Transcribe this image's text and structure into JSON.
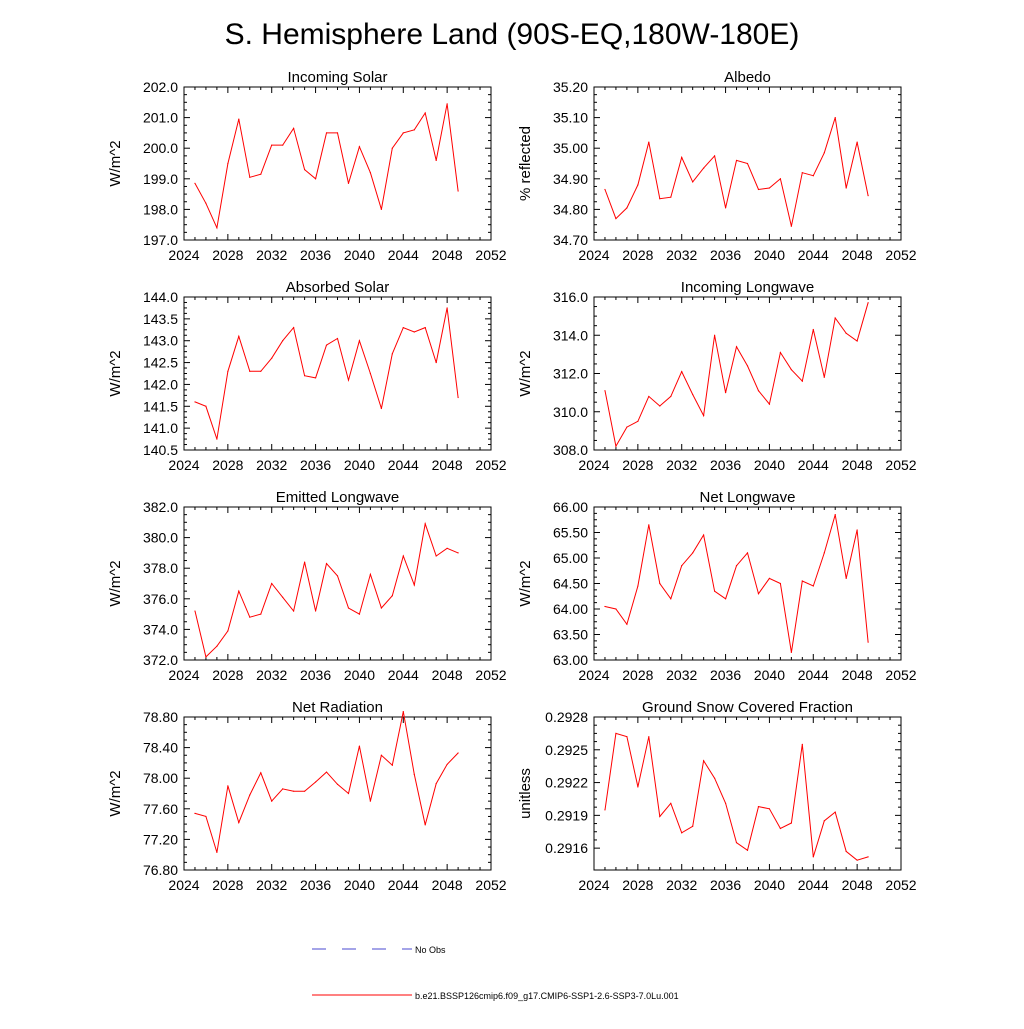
{
  "title": "S. Hemisphere Land (90S-EQ,180W-180E)",
  "colors": {
    "series": "#ff0000",
    "obs": "#4a4ad0",
    "frame": "#000000"
  },
  "legend": {
    "obs_label": "No Obs",
    "model_label": "b.e21.BSSP126cmip6.f09_g17.CMIP6-SSP1-2.6-SSP3-7.0Lu.001"
  },
  "chart_data": [
    {
      "type": "line",
      "title": "Incoming Solar",
      "ylabel": "W/m^2",
      "xlim": [
        2024,
        2052
      ],
      "xticks": [
        2024,
        2028,
        2032,
        2036,
        2040,
        2044,
        2048,
        2052
      ],
      "ylim": [
        197.0,
        202.0
      ],
      "yticks": [
        "197.0",
        "198.0",
        "199.0",
        "200.0",
        "201.0",
        "202.0"
      ],
      "x": [
        2025,
        2026,
        2027,
        2028,
        2029,
        2030,
        2031,
        2032,
        2033,
        2034,
        2035,
        2036,
        2037,
        2038,
        2039,
        2040,
        2041,
        2042,
        2043,
        2044,
        2045,
        2046,
        2047,
        2048,
        2049
      ],
      "values": [
        198.85,
        198.2,
        197.4,
        199.5,
        200.95,
        199.05,
        199.15,
        200.1,
        200.1,
        200.65,
        199.3,
        199.0,
        200.5,
        200.5,
        198.85,
        200.05,
        199.2,
        198.0,
        200.0,
        200.5,
        200.6,
        201.15,
        199.6,
        201.45,
        198.6
      ]
    },
    {
      "type": "line",
      "title": "Albedo",
      "ylabel": "% reflected",
      "xlim": [
        2024,
        2052
      ],
      "xticks": [
        2024,
        2028,
        2032,
        2036,
        2040,
        2044,
        2048,
        2052
      ],
      "ylim": [
        34.7,
        35.2
      ],
      "yticks": [
        "34.70",
        "34.80",
        "34.90",
        "35.00",
        "35.10",
        "35.20"
      ],
      "x": [
        2025,
        2026,
        2027,
        2028,
        2029,
        2030,
        2031,
        2032,
        2033,
        2034,
        2035,
        2036,
        2037,
        2038,
        2039,
        2040,
        2041,
        2042,
        2043,
        2044,
        2045,
        2046,
        2047,
        2048,
        2049
      ],
      "values": [
        34.865,
        34.77,
        34.805,
        34.88,
        35.02,
        34.835,
        34.84,
        34.97,
        34.89,
        34.935,
        34.975,
        34.805,
        34.96,
        34.95,
        34.865,
        34.87,
        34.9,
        34.745,
        34.92,
        34.91,
        34.985,
        35.1,
        34.87,
        35.02,
        34.845
      ]
    },
    {
      "type": "line",
      "title": "Absorbed Solar",
      "ylabel": "W/m^2",
      "xlim": [
        2024,
        2052
      ],
      "xticks": [
        2024,
        2028,
        2032,
        2036,
        2040,
        2044,
        2048,
        2052
      ],
      "ylim": [
        140.5,
        144.0
      ],
      "yticks": [
        "140.5",
        "141.0",
        "141.5",
        "142.0",
        "142.5",
        "143.0",
        "143.5",
        "144.0"
      ],
      "x": [
        2025,
        2026,
        2027,
        2028,
        2029,
        2030,
        2031,
        2032,
        2033,
        2034,
        2035,
        2036,
        2037,
        2038,
        2039,
        2040,
        2041,
        2042,
        2043,
        2044,
        2045,
        2046,
        2047,
        2048,
        2049
      ],
      "values": [
        141.6,
        141.5,
        140.75,
        142.3,
        143.1,
        142.3,
        142.3,
        142.6,
        143.0,
        143.3,
        142.2,
        142.15,
        142.9,
        143.05,
        142.1,
        143.0,
        142.25,
        141.45,
        142.7,
        143.3,
        143.2,
        143.3,
        142.5,
        143.75,
        141.7
      ]
    },
    {
      "type": "line",
      "title": "Incoming Longwave",
      "ylabel": "W/m^2",
      "xlim": [
        2024,
        2052
      ],
      "xticks": [
        2024,
        2028,
        2032,
        2036,
        2040,
        2044,
        2048,
        2052
      ],
      "ylim": [
        308.0,
        316.0
      ],
      "yticks": [
        "308.0",
        "310.0",
        "312.0",
        "314.0",
        "316.0"
      ],
      "x": [
        2025,
        2026,
        2027,
        2028,
        2029,
        2030,
        2031,
        2032,
        2033,
        2034,
        2035,
        2036,
        2037,
        2038,
        2039,
        2040,
        2041,
        2042,
        2043,
        2044,
        2045,
        2046,
        2047,
        2048,
        2049
      ],
      "values": [
        311.1,
        308.2,
        309.2,
        309.5,
        310.8,
        310.3,
        310.8,
        312.1,
        310.9,
        309.8,
        314.0,
        311.0,
        313.4,
        312.4,
        311.1,
        310.4,
        313.1,
        312.2,
        311.6,
        314.3,
        311.8,
        314.9,
        314.1,
        313.7,
        315.7
      ]
    },
    {
      "type": "line",
      "title": "Emitted Longwave",
      "ylabel": "W/m^2",
      "xlim": [
        2024,
        2052
      ],
      "xticks": [
        2024,
        2028,
        2032,
        2036,
        2040,
        2044,
        2048,
        2052
      ],
      "ylim": [
        372.0,
        382.0
      ],
      "yticks": [
        "372.0",
        "374.0",
        "376.0",
        "378.0",
        "380.0",
        "382.0"
      ],
      "x": [
        2025,
        2026,
        2027,
        2028,
        2029,
        2030,
        2031,
        2032,
        2033,
        2034,
        2035,
        2036,
        2037,
        2038,
        2039,
        2040,
        2041,
        2042,
        2043,
        2044,
        2045,
        2046,
        2047,
        2048,
        2049
      ],
      "values": [
        375.2,
        372.2,
        372.9,
        373.9,
        376.5,
        374.8,
        375.0,
        377.0,
        376.1,
        375.2,
        378.4,
        375.2,
        378.3,
        377.5,
        375.4,
        375.0,
        377.6,
        375.4,
        376.2,
        378.8,
        376.9,
        380.9,
        378.8,
        379.3,
        379.0
      ]
    },
    {
      "type": "line",
      "title": "Net Longwave",
      "ylabel": "W/m^2",
      "xlim": [
        2024,
        2052
      ],
      "xticks": [
        2024,
        2028,
        2032,
        2036,
        2040,
        2044,
        2048,
        2052
      ],
      "ylim": [
        63.0,
        66.0
      ],
      "yticks": [
        "63.00",
        "63.50",
        "64.00",
        "64.50",
        "65.00",
        "65.50",
        "66.00"
      ],
      "x": [
        2025,
        2026,
        2027,
        2028,
        2029,
        2030,
        2031,
        2032,
        2033,
        2034,
        2035,
        2036,
        2037,
        2038,
        2039,
        2040,
        2041,
        2042,
        2043,
        2044,
        2045,
        2046,
        2047,
        2048,
        2049
      ],
      "values": [
        64.05,
        64.0,
        63.7,
        64.45,
        65.65,
        64.5,
        64.2,
        64.85,
        65.1,
        65.45,
        64.35,
        64.2,
        64.85,
        65.1,
        64.3,
        64.6,
        64.5,
        63.15,
        64.55,
        64.45,
        65.1,
        65.85,
        64.6,
        65.55,
        63.35
      ]
    },
    {
      "type": "line",
      "title": "Net Radiation",
      "ylabel": "W/m^2",
      "xlim": [
        2024,
        2052
      ],
      "xticks": [
        2024,
        2028,
        2032,
        2036,
        2040,
        2044,
        2048,
        2052
      ],
      "ylim": [
        76.8,
        78.8
      ],
      "yticks": [
        "76.80",
        "77.20",
        "77.60",
        "78.00",
        "78.40",
        "78.80"
      ],
      "x": [
        2025,
        2026,
        2027,
        2028,
        2029,
        2030,
        2031,
        2032,
        2033,
        2034,
        2035,
        2036,
        2037,
        2038,
        2039,
        2040,
        2041,
        2042,
        2043,
        2044,
        2045,
        2046,
        2047,
        2048,
        2049
      ],
      "values": [
        77.54,
        77.5,
        77.03,
        77.9,
        77.42,
        77.78,
        78.07,
        77.7,
        77.86,
        77.83,
        77.83,
        77.95,
        78.08,
        77.92,
        77.8,
        78.42,
        77.7,
        78.3,
        78.17,
        78.87,
        78.05,
        77.39,
        77.93,
        78.18,
        78.33
      ]
    },
    {
      "type": "line",
      "title": "Ground Snow Covered Fraction",
      "ylabel": "unitless",
      "xlim": [
        2024,
        2052
      ],
      "xticks": [
        2024,
        2028,
        2032,
        2036,
        2040,
        2044,
        2048,
        2052
      ],
      "ylim": [
        0.2914,
        0.2928
      ],
      "yticks": [
        "0.2916",
        "0.2919",
        "0.2922",
        "0.2925",
        "0.2928"
      ],
      "ytick_values": [
        0.2916,
        0.2919,
        0.2922,
        0.2925,
        0.2928
      ],
      "x": [
        2025,
        2026,
        2027,
        2028,
        2029,
        2030,
        2031,
        2032,
        2033,
        2034,
        2035,
        2036,
        2037,
        2038,
        2039,
        2040,
        2041,
        2042,
        2043,
        2044,
        2045,
        2046,
        2047,
        2048,
        2049
      ],
      "values": [
        0.29195,
        0.29265,
        0.29262,
        0.29216,
        0.29262,
        0.29189,
        0.29201,
        0.29174,
        0.2918,
        0.2924,
        0.29224,
        0.29201,
        0.29165,
        0.29158,
        0.29198,
        0.29196,
        0.29178,
        0.29183,
        0.29255,
        0.29152,
        0.29185,
        0.29193,
        0.29157,
        0.29149,
        0.29152
      ]
    }
  ]
}
